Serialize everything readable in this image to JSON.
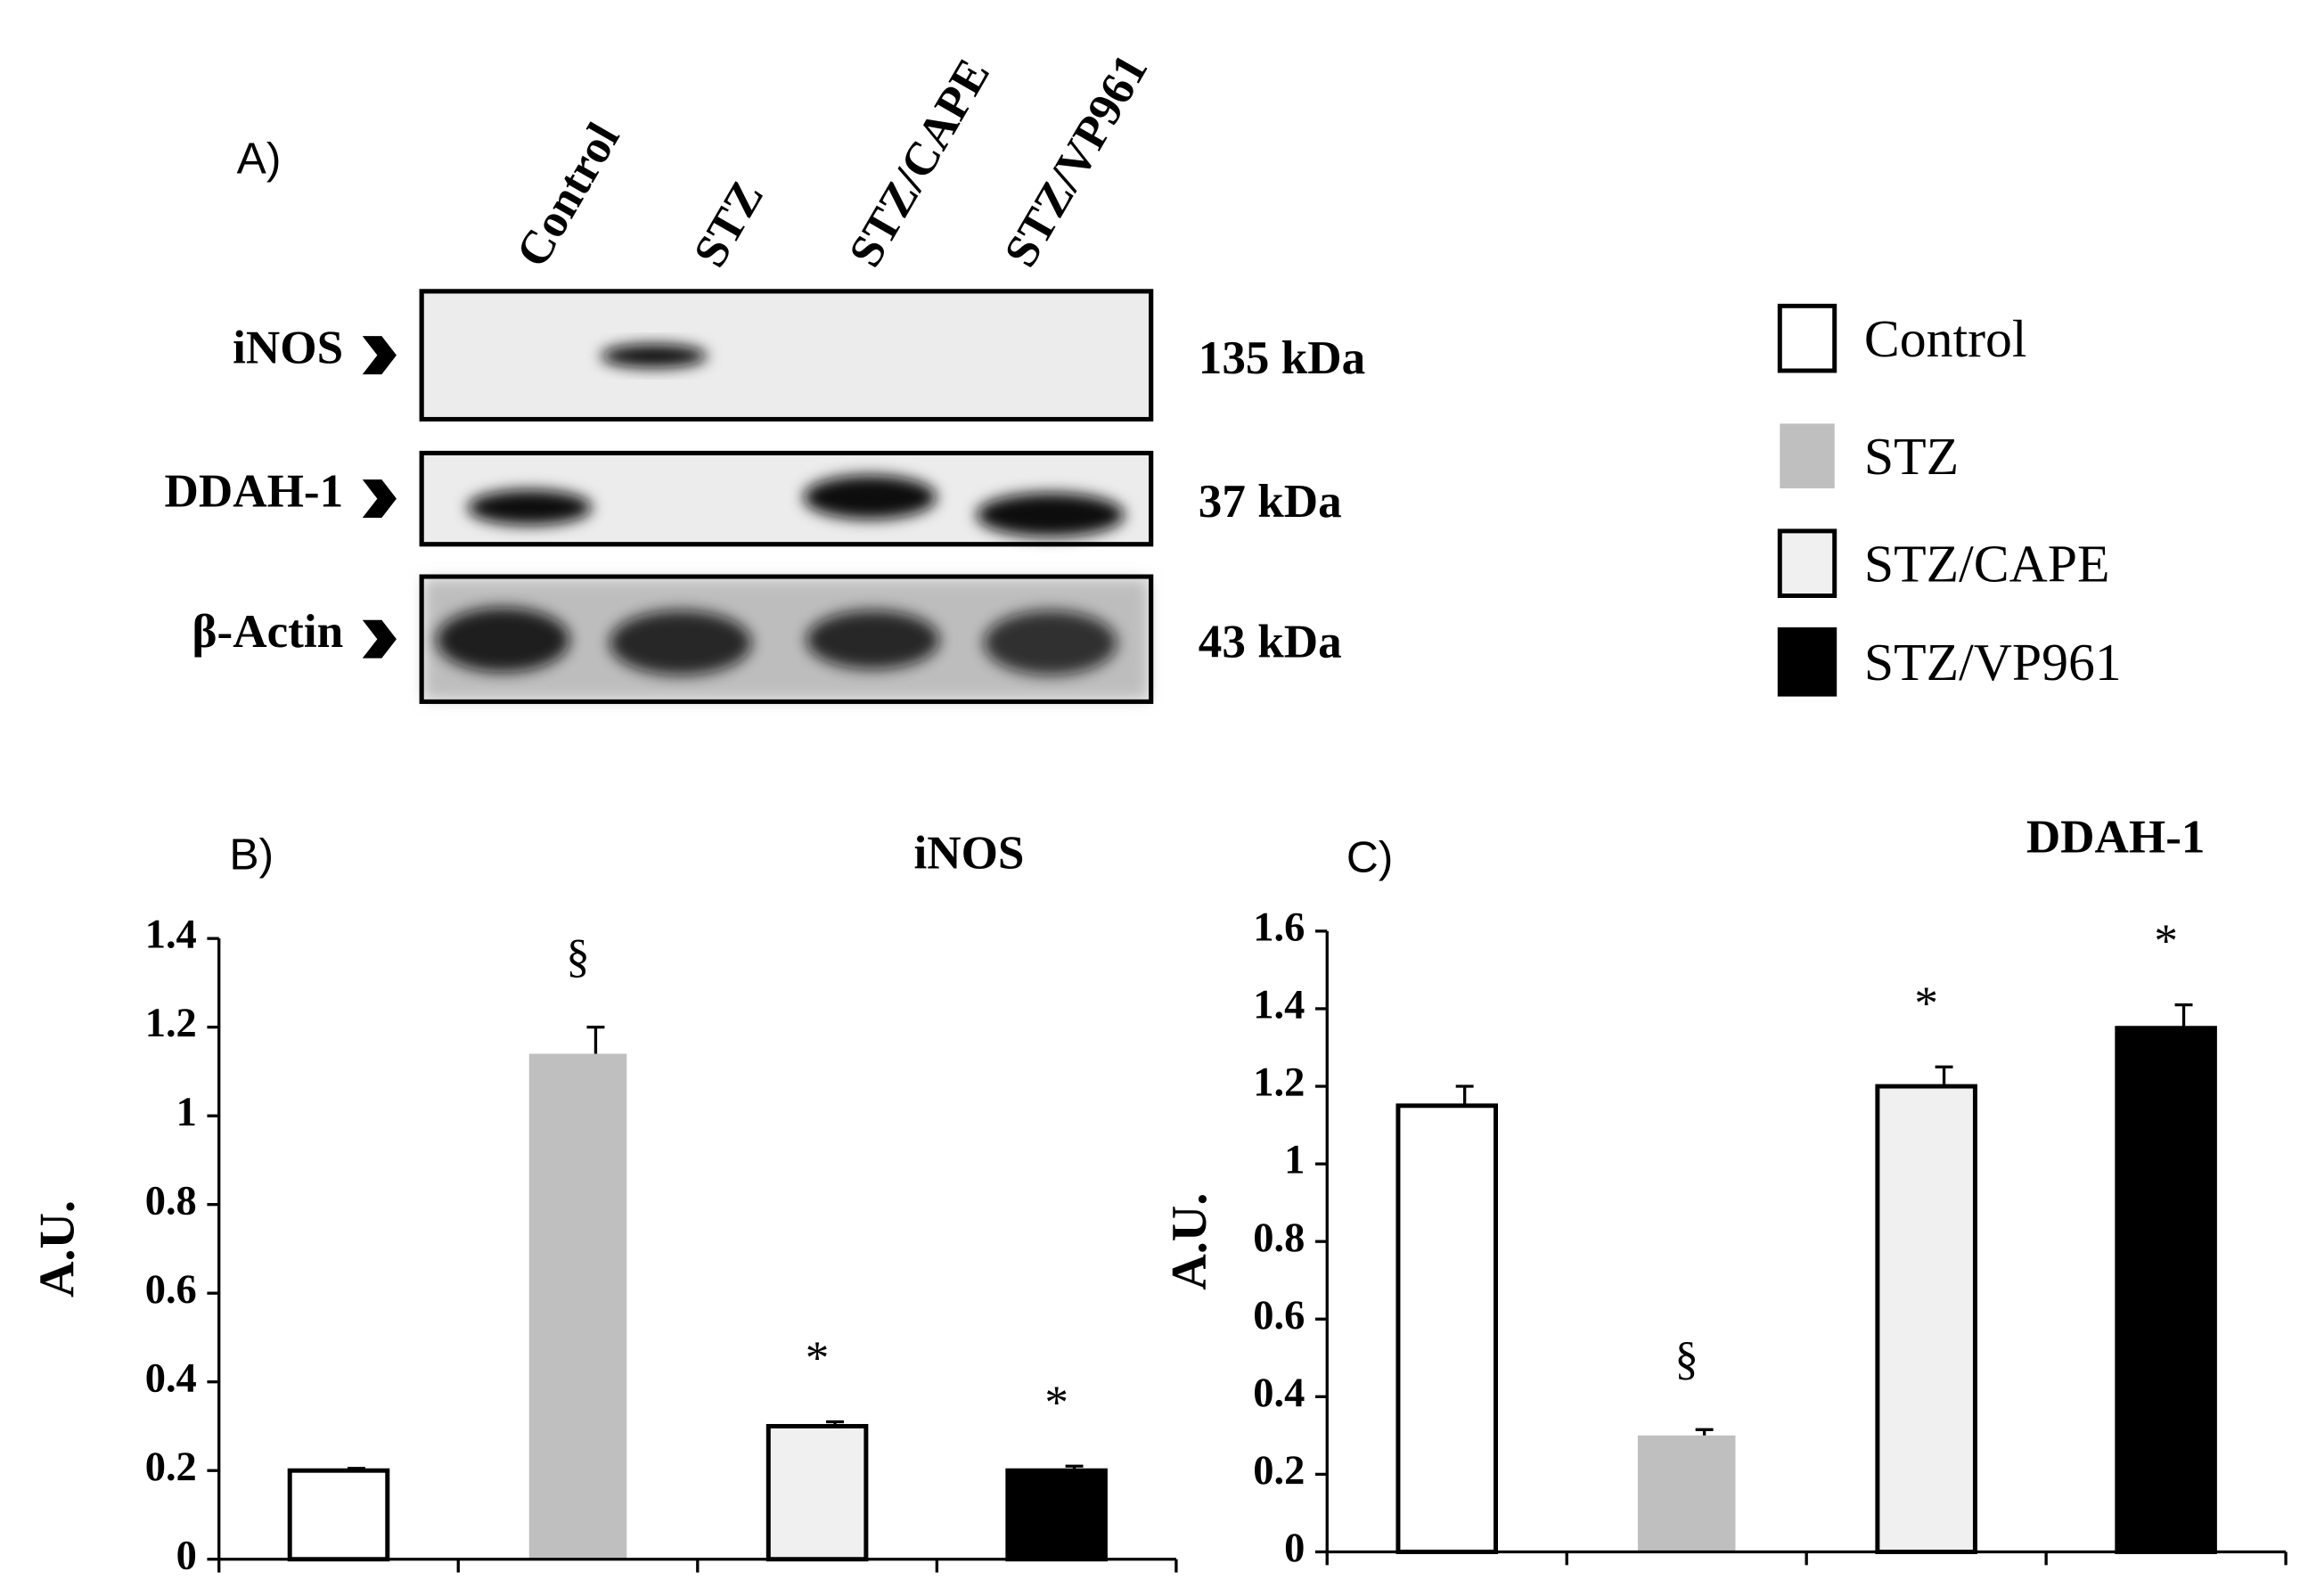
{
  "blot": {
    "panel": "A)",
    "lanes": [
      "Control",
      "STZ",
      "STZ/CAPE",
      "STZ/VP961"
    ],
    "rows": [
      {
        "label": "iNOS",
        "size": "135 kDa"
      },
      {
        "label": "DDAH-1",
        "size": "37 kDa"
      },
      {
        "label": "β-Actin",
        "size": "43 kDa"
      }
    ]
  },
  "legend": {
    "labels": [
      "Control",
      "STZ",
      "STZ/CAPE",
      "STZ/VP961"
    ],
    "colors": [
      "#ffffff",
      "#bfbfbf",
      "#f0f0f0",
      "#000000"
    ]
  },
  "chart_data": [
    {
      "type": "bar",
      "panel": "B)",
      "title": "iNOS",
      "y_label": "A.U.",
      "categories": [
        null,
        null,
        null,
        null
      ],
      "values": [
        0.2,
        1.14,
        0.3,
        0.2
      ],
      "errors": [
        0.005,
        0.06,
        0.01,
        0.01
      ],
      "annotations": [
        null,
        "§",
        "*",
        "*"
      ],
      "colors": [
        "#ffffff",
        "#bfbfbf",
        "#f0f0f0",
        "#000000"
      ],
      "ylim": [
        0,
        1.4
      ],
      "yticks": [
        0,
        0.2,
        0.4,
        0.6,
        0.8,
        1,
        1.2,
        1.4
      ]
    },
    {
      "type": "bar",
      "panel": "C)",
      "title": "DDAH-1",
      "y_label": "A.U.",
      "categories": [
        null,
        null,
        null,
        null
      ],
      "values": [
        1.15,
        0.3,
        1.2,
        1.35
      ],
      "errors": [
        0.05,
        0.015,
        0.05,
        0.06
      ],
      "annotations": [
        null,
        "§",
        "*",
        "*"
      ],
      "colors": [
        "#ffffff",
        "#bfbfbf",
        "#f0f0f0",
        "#000000"
      ],
      "ylim": [
        0,
        1.6
      ],
      "yticks": [
        0,
        0.2,
        0.4,
        0.6,
        0.8,
        1,
        1.2,
        1.4,
        1.6
      ]
    }
  ]
}
